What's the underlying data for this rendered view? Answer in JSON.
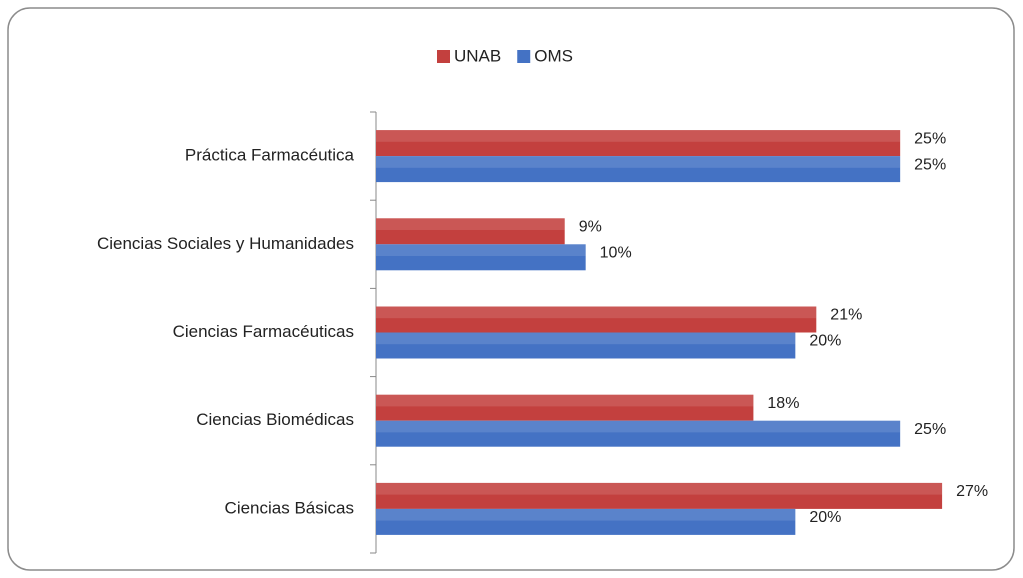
{
  "chart_data": {
    "type": "bar",
    "orientation": "horizontal",
    "categories": [
      "Práctica Farmacéutica",
      "Ciencias Sociales y Humanidades",
      "Ciencias Farmacéuticas",
      "Ciencias Biomédicas",
      "Ciencias Básicas"
    ],
    "series": [
      {
        "name": "UNAB",
        "color": "#c3403e",
        "values": [
          25,
          9,
          21,
          18,
          27
        ],
        "value_labels": [
          "25%",
          "9%",
          "21%",
          "18%",
          "27%"
        ]
      },
      {
        "name": "OMS",
        "color": "#4472c4",
        "values": [
          25,
          10,
          20,
          25,
          20
        ],
        "value_labels": [
          "25%",
          "10%",
          "20%",
          "25%",
          "20%"
        ]
      }
    ],
    "xlim": [
      0,
      30
    ],
    "legend": "top"
  }
}
